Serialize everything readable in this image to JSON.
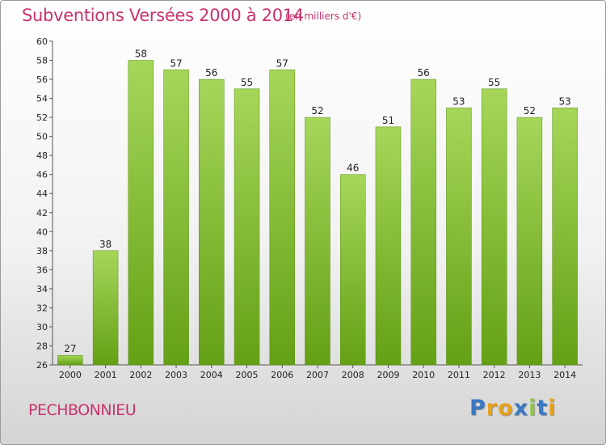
{
  "title": "Subventions Versées 2000 à 2014",
  "unit_note": "(en milliers d'€)",
  "commune": "PECHBONNIEU",
  "logo": {
    "text": "Proxiti",
    "letter_colors": [
      "#3a78c4",
      "#e6a21c",
      "#e6a21c",
      "#3a78c4",
      "#8cc63f",
      "#3a78c4",
      "#e6a21c"
    ]
  },
  "colors": {
    "bar_top": "#a6d65a",
    "bar_bottom": "#64a015",
    "title": "#c8336e"
  },
  "chart_data": {
    "type": "bar",
    "categories": [
      "2000",
      "2001",
      "2002",
      "2003",
      "2004",
      "2005",
      "2006",
      "2007",
      "2008",
      "2009",
      "2010",
      "2011",
      "2012",
      "2013",
      "2014"
    ],
    "values": [
      27,
      38,
      58,
      57,
      56,
      55,
      57,
      52,
      46,
      51,
      56,
      53,
      55,
      52,
      53
    ],
    "ylim": [
      26,
      60
    ],
    "yticks": [
      26,
      28,
      30,
      32,
      34,
      36,
      38,
      40,
      42,
      44,
      46,
      48,
      50,
      52,
      54,
      56,
      58,
      60
    ],
    "grid": false,
    "title": "Subventions Versées 2000 à 2014",
    "xlabel": "",
    "ylabel": ""
  }
}
